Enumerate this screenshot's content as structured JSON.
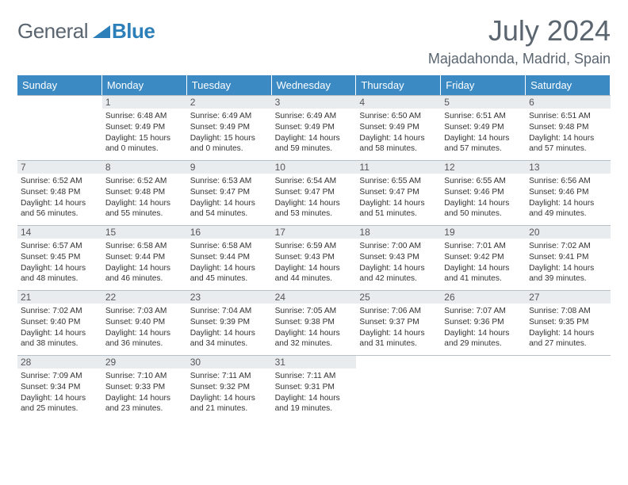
{
  "brand": {
    "part1": "General",
    "part2": "Blue"
  },
  "month_title": "July 2024",
  "location": "Majadahonda, Madrid, Spain",
  "week_days": [
    "Sunday",
    "Monday",
    "Tuesday",
    "Wednesday",
    "Thursday",
    "Friday",
    "Saturday"
  ],
  "colors": {
    "header_bg": "#3b8ac4",
    "header_text": "#ffffff",
    "daynum_bg": "#e8ecef",
    "border": "#b8c0c8",
    "title_text": "#5a6570",
    "logo_accent": "#2c7fb8"
  },
  "fonts": {
    "title_size_pt": 27,
    "location_size_pt": 14,
    "header_size_pt": 10,
    "body_size_pt": 8
  },
  "cells": [
    {
      "day": "",
      "sunrise": "",
      "sunset": "",
      "daylight": ""
    },
    {
      "day": "1",
      "sunrise": "Sunrise: 6:48 AM",
      "sunset": "Sunset: 9:49 PM",
      "daylight": "Daylight: 15 hours and 0 minutes."
    },
    {
      "day": "2",
      "sunrise": "Sunrise: 6:49 AM",
      "sunset": "Sunset: 9:49 PM",
      "daylight": "Daylight: 15 hours and 0 minutes."
    },
    {
      "day": "3",
      "sunrise": "Sunrise: 6:49 AM",
      "sunset": "Sunset: 9:49 PM",
      "daylight": "Daylight: 14 hours and 59 minutes."
    },
    {
      "day": "4",
      "sunrise": "Sunrise: 6:50 AM",
      "sunset": "Sunset: 9:49 PM",
      "daylight": "Daylight: 14 hours and 58 minutes."
    },
    {
      "day": "5",
      "sunrise": "Sunrise: 6:51 AM",
      "sunset": "Sunset: 9:49 PM",
      "daylight": "Daylight: 14 hours and 57 minutes."
    },
    {
      "day": "6",
      "sunrise": "Sunrise: 6:51 AM",
      "sunset": "Sunset: 9:48 PM",
      "daylight": "Daylight: 14 hours and 57 minutes."
    },
    {
      "day": "7",
      "sunrise": "Sunrise: 6:52 AM",
      "sunset": "Sunset: 9:48 PM",
      "daylight": "Daylight: 14 hours and 56 minutes."
    },
    {
      "day": "8",
      "sunrise": "Sunrise: 6:52 AM",
      "sunset": "Sunset: 9:48 PM",
      "daylight": "Daylight: 14 hours and 55 minutes."
    },
    {
      "day": "9",
      "sunrise": "Sunrise: 6:53 AM",
      "sunset": "Sunset: 9:47 PM",
      "daylight": "Daylight: 14 hours and 54 minutes."
    },
    {
      "day": "10",
      "sunrise": "Sunrise: 6:54 AM",
      "sunset": "Sunset: 9:47 PM",
      "daylight": "Daylight: 14 hours and 53 minutes."
    },
    {
      "day": "11",
      "sunrise": "Sunrise: 6:55 AM",
      "sunset": "Sunset: 9:47 PM",
      "daylight": "Daylight: 14 hours and 51 minutes."
    },
    {
      "day": "12",
      "sunrise": "Sunrise: 6:55 AM",
      "sunset": "Sunset: 9:46 PM",
      "daylight": "Daylight: 14 hours and 50 minutes."
    },
    {
      "day": "13",
      "sunrise": "Sunrise: 6:56 AM",
      "sunset": "Sunset: 9:46 PM",
      "daylight": "Daylight: 14 hours and 49 minutes."
    },
    {
      "day": "14",
      "sunrise": "Sunrise: 6:57 AM",
      "sunset": "Sunset: 9:45 PM",
      "daylight": "Daylight: 14 hours and 48 minutes."
    },
    {
      "day": "15",
      "sunrise": "Sunrise: 6:58 AM",
      "sunset": "Sunset: 9:44 PM",
      "daylight": "Daylight: 14 hours and 46 minutes."
    },
    {
      "day": "16",
      "sunrise": "Sunrise: 6:58 AM",
      "sunset": "Sunset: 9:44 PM",
      "daylight": "Daylight: 14 hours and 45 minutes."
    },
    {
      "day": "17",
      "sunrise": "Sunrise: 6:59 AM",
      "sunset": "Sunset: 9:43 PM",
      "daylight": "Daylight: 14 hours and 44 minutes."
    },
    {
      "day": "18",
      "sunrise": "Sunrise: 7:00 AM",
      "sunset": "Sunset: 9:43 PM",
      "daylight": "Daylight: 14 hours and 42 minutes."
    },
    {
      "day": "19",
      "sunrise": "Sunrise: 7:01 AM",
      "sunset": "Sunset: 9:42 PM",
      "daylight": "Daylight: 14 hours and 41 minutes."
    },
    {
      "day": "20",
      "sunrise": "Sunrise: 7:02 AM",
      "sunset": "Sunset: 9:41 PM",
      "daylight": "Daylight: 14 hours and 39 minutes."
    },
    {
      "day": "21",
      "sunrise": "Sunrise: 7:02 AM",
      "sunset": "Sunset: 9:40 PM",
      "daylight": "Daylight: 14 hours and 38 minutes."
    },
    {
      "day": "22",
      "sunrise": "Sunrise: 7:03 AM",
      "sunset": "Sunset: 9:40 PM",
      "daylight": "Daylight: 14 hours and 36 minutes."
    },
    {
      "day": "23",
      "sunrise": "Sunrise: 7:04 AM",
      "sunset": "Sunset: 9:39 PM",
      "daylight": "Daylight: 14 hours and 34 minutes."
    },
    {
      "day": "24",
      "sunrise": "Sunrise: 7:05 AM",
      "sunset": "Sunset: 9:38 PM",
      "daylight": "Daylight: 14 hours and 32 minutes."
    },
    {
      "day": "25",
      "sunrise": "Sunrise: 7:06 AM",
      "sunset": "Sunset: 9:37 PM",
      "daylight": "Daylight: 14 hours and 31 minutes."
    },
    {
      "day": "26",
      "sunrise": "Sunrise: 7:07 AM",
      "sunset": "Sunset: 9:36 PM",
      "daylight": "Daylight: 14 hours and 29 minutes."
    },
    {
      "day": "27",
      "sunrise": "Sunrise: 7:08 AM",
      "sunset": "Sunset: 9:35 PM",
      "daylight": "Daylight: 14 hours and 27 minutes."
    },
    {
      "day": "28",
      "sunrise": "Sunrise: 7:09 AM",
      "sunset": "Sunset: 9:34 PM",
      "daylight": "Daylight: 14 hours and 25 minutes."
    },
    {
      "day": "29",
      "sunrise": "Sunrise: 7:10 AM",
      "sunset": "Sunset: 9:33 PM",
      "daylight": "Daylight: 14 hours and 23 minutes."
    },
    {
      "day": "30",
      "sunrise": "Sunrise: 7:11 AM",
      "sunset": "Sunset: 9:32 PM",
      "daylight": "Daylight: 14 hours and 21 minutes."
    },
    {
      "day": "31",
      "sunrise": "Sunrise: 7:11 AM",
      "sunset": "Sunset: 9:31 PM",
      "daylight": "Daylight: 14 hours and 19 minutes."
    },
    {
      "day": "",
      "sunrise": "",
      "sunset": "",
      "daylight": ""
    },
    {
      "day": "",
      "sunrise": "",
      "sunset": "",
      "daylight": ""
    },
    {
      "day": "",
      "sunrise": "",
      "sunset": "",
      "daylight": ""
    }
  ]
}
